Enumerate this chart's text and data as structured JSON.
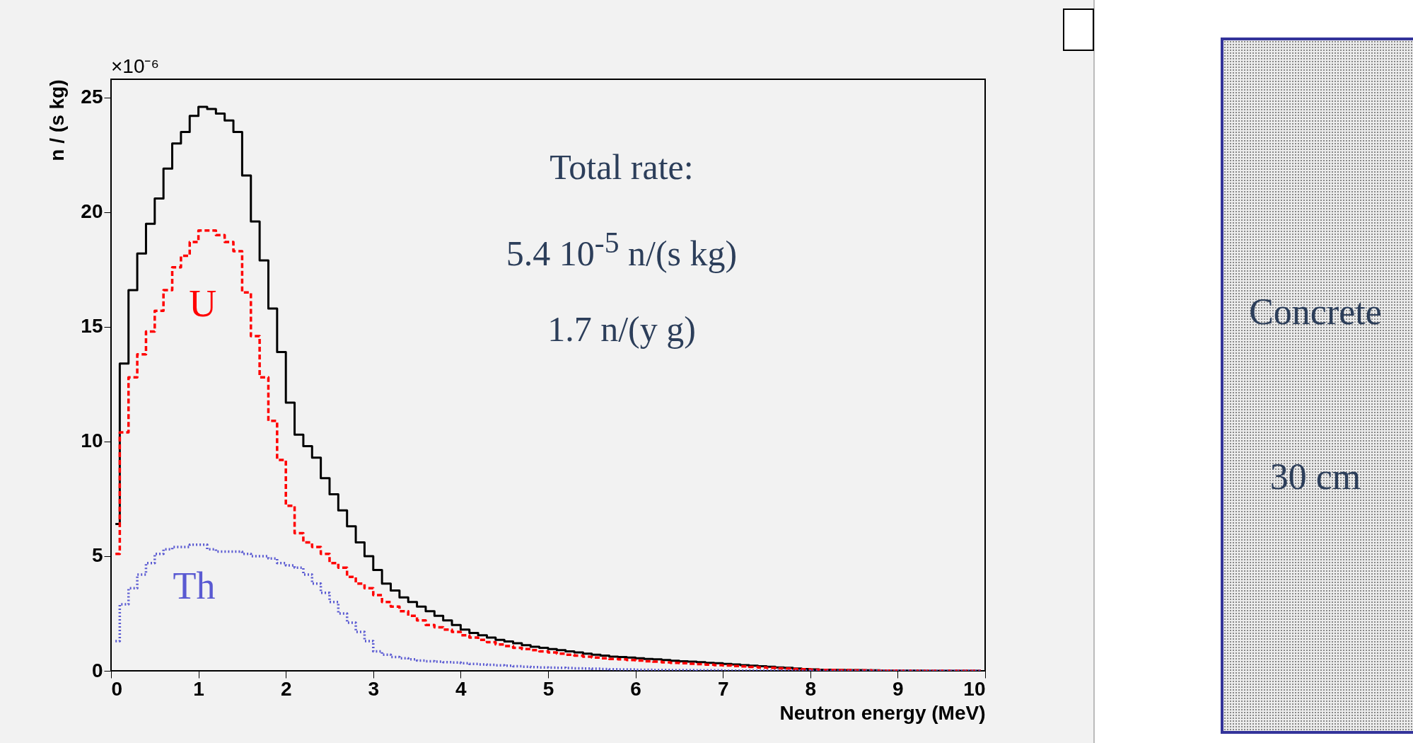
{
  "chart_data": {
    "type": "step",
    "xlabel": "Neutron energy (MeV)",
    "ylabel": "n / (s kg)",
    "x": [
      0.05,
      0.15,
      0.25,
      0.35,
      0.45,
      0.55,
      0.65,
      0.75,
      0.85,
      0.95,
      1.05,
      1.15,
      1.25,
      1.35,
      1.45,
      1.55,
      1.65,
      1.75,
      1.85,
      1.95,
      2.05,
      2.15,
      2.25,
      2.35,
      2.45,
      2.55,
      2.65,
      2.75,
      2.85,
      2.95,
      3.05,
      3.15,
      3.25,
      3.35,
      3.45,
      3.55,
      3.65,
      3.75,
      3.85,
      3.95,
      4.05,
      4.15,
      4.25,
      4.35,
      4.45,
      4.55,
      4.65,
      4.75,
      4.85,
      4.95,
      5.05,
      5.15,
      5.25,
      5.35,
      5.45,
      5.55,
      5.65,
      5.75,
      5.85,
      5.95,
      6.05,
      6.15,
      6.25,
      6.35,
      6.45,
      6.55,
      6.65,
      6.75,
      6.85,
      6.95,
      7.05,
      7.15,
      7.25,
      7.35,
      7.45,
      7.55,
      7.65,
      7.75,
      7.85,
      7.95,
      8.05,
      8.15,
      8.25,
      8.35,
      8.45,
      8.55,
      8.65,
      8.75,
      8.85,
      8.95,
      9.05,
      9.15,
      9.25,
      9.35,
      9.45,
      9.55,
      9.65,
      9.75,
      9.85,
      9.95
    ],
    "series": [
      {
        "color": "#000000",
        "line_style": "solid",
        "values": [
          6.4,
          13.4,
          16.6,
          18.2,
          19.5,
          20.6,
          21.9,
          23.0,
          23.5,
          24.2,
          24.6,
          24.5,
          24.3,
          24.0,
          23.5,
          21.6,
          19.6,
          17.9,
          15.8,
          13.9,
          11.7,
          10.3,
          9.8,
          9.3,
          8.4,
          7.7,
          7.0,
          6.3,
          5.6,
          5.0,
          4.4,
          3.8,
          3.5,
          3.2,
          3.0,
          2.8,
          2.6,
          2.4,
          2.2,
          2.0,
          1.8,
          1.65,
          1.55,
          1.45,
          1.35,
          1.28,
          1.2,
          1.12,
          1.05,
          1.0,
          0.95,
          0.9,
          0.85,
          0.8,
          0.75,
          0.7,
          0.66,
          0.62,
          0.6,
          0.58,
          0.55,
          0.52,
          0.5,
          0.47,
          0.44,
          0.42,
          0.4,
          0.38,
          0.35,
          0.33,
          0.3,
          0.28,
          0.25,
          0.22,
          0.2,
          0.18,
          0.15,
          0.13,
          0.1,
          0.08,
          0.06,
          0.05,
          0.05,
          0.04,
          0.03,
          0.03,
          0.02,
          0.02,
          0.01,
          0.01,
          0.01,
          0.01,
          0.01,
          0,
          0,
          0,
          0,
          0,
          0,
          0
        ]
      },
      {
        "name": "U",
        "color": "#ff0000",
        "line_style": "dashed",
        "values": [
          5.1,
          10.4,
          12.8,
          13.8,
          14.8,
          15.7,
          16.6,
          17.6,
          18.1,
          18.7,
          19.2,
          19.2,
          19.0,
          18.7,
          18.3,
          16.5,
          14.6,
          12.8,
          10.9,
          9.2,
          7.2,
          6.0,
          5.6,
          5.4,
          5.1,
          4.7,
          4.5,
          4.1,
          3.8,
          3.6,
          3.3,
          3.0,
          2.8,
          2.6,
          2.4,
          2.2,
          2.0,
          1.9,
          1.8,
          1.7,
          1.55,
          1.45,
          1.35,
          1.25,
          1.15,
          1.08,
          1.0,
          0.95,
          0.9,
          0.85,
          0.8,
          0.75,
          0.7,
          0.66,
          0.62,
          0.58,
          0.55,
          0.52,
          0.5,
          0.47,
          0.45,
          0.42,
          0.4,
          0.37,
          0.35,
          0.33,
          0.31,
          0.29,
          0.27,
          0.25,
          0.23,
          0.21,
          0.19,
          0.17,
          0.15,
          0.13,
          0.11,
          0.1,
          0.08,
          0.07,
          0.05,
          0.04,
          0.04,
          0.03,
          0.03,
          0.02,
          0.02,
          0.01,
          0.01,
          0.01,
          0,
          0,
          0,
          0,
          0,
          0,
          0,
          0,
          0,
          0
        ]
      },
      {
        "name": "Th",
        "color": "#5a5ad2",
        "line_style": "dotted",
        "values": [
          1.3,
          2.9,
          3.6,
          4.2,
          4.7,
          5.1,
          5.3,
          5.4,
          5.4,
          5.5,
          5.5,
          5.3,
          5.2,
          5.2,
          5.2,
          5.1,
          5.0,
          5.0,
          4.9,
          4.7,
          4.6,
          4.5,
          4.2,
          3.8,
          3.4,
          3.0,
          2.5,
          2.1,
          1.7,
          1.3,
          0.85,
          0.7,
          0.6,
          0.55,
          0.5,
          0.45,
          0.42,
          0.4,
          0.38,
          0.36,
          0.33,
          0.3,
          0.28,
          0.26,
          0.24,
          0.22,
          0.2,
          0.18,
          0.16,
          0.15,
          0.14,
          0.13,
          0.12,
          0.11,
          0.1,
          0.09,
          0.08,
          0.07,
          0.06,
          0.06,
          0.05,
          0.05,
          0.04,
          0.04,
          0.03,
          0.03,
          0.03,
          0.02,
          0.02,
          0.02,
          0.01,
          0.01,
          0.01,
          0.01,
          0.01,
          0.01,
          0.01,
          0.01,
          0.01,
          0.01,
          0,
          0,
          0,
          0,
          0,
          0,
          0,
          0,
          0,
          0,
          0,
          0,
          0,
          0,
          0,
          0,
          0,
          0,
          0,
          0
        ]
      }
    ],
    "xlim": [
      0,
      10
    ],
    "xticks": [
      0,
      1,
      2,
      3,
      4,
      5,
      6,
      7,
      8,
      9,
      10
    ],
    "ylim": [
      0,
      25.8
    ],
    "yticks": [
      0,
      5,
      10,
      15,
      20,
      25
    ],
    "annotations": [
      "×10⁻⁶",
      "Total rate:",
      "5.4 10$^{-5}$ n/(s kg)",
      "1.7 n/(y g)",
      "Concrete",
      "30 cm"
    ]
  }
}
